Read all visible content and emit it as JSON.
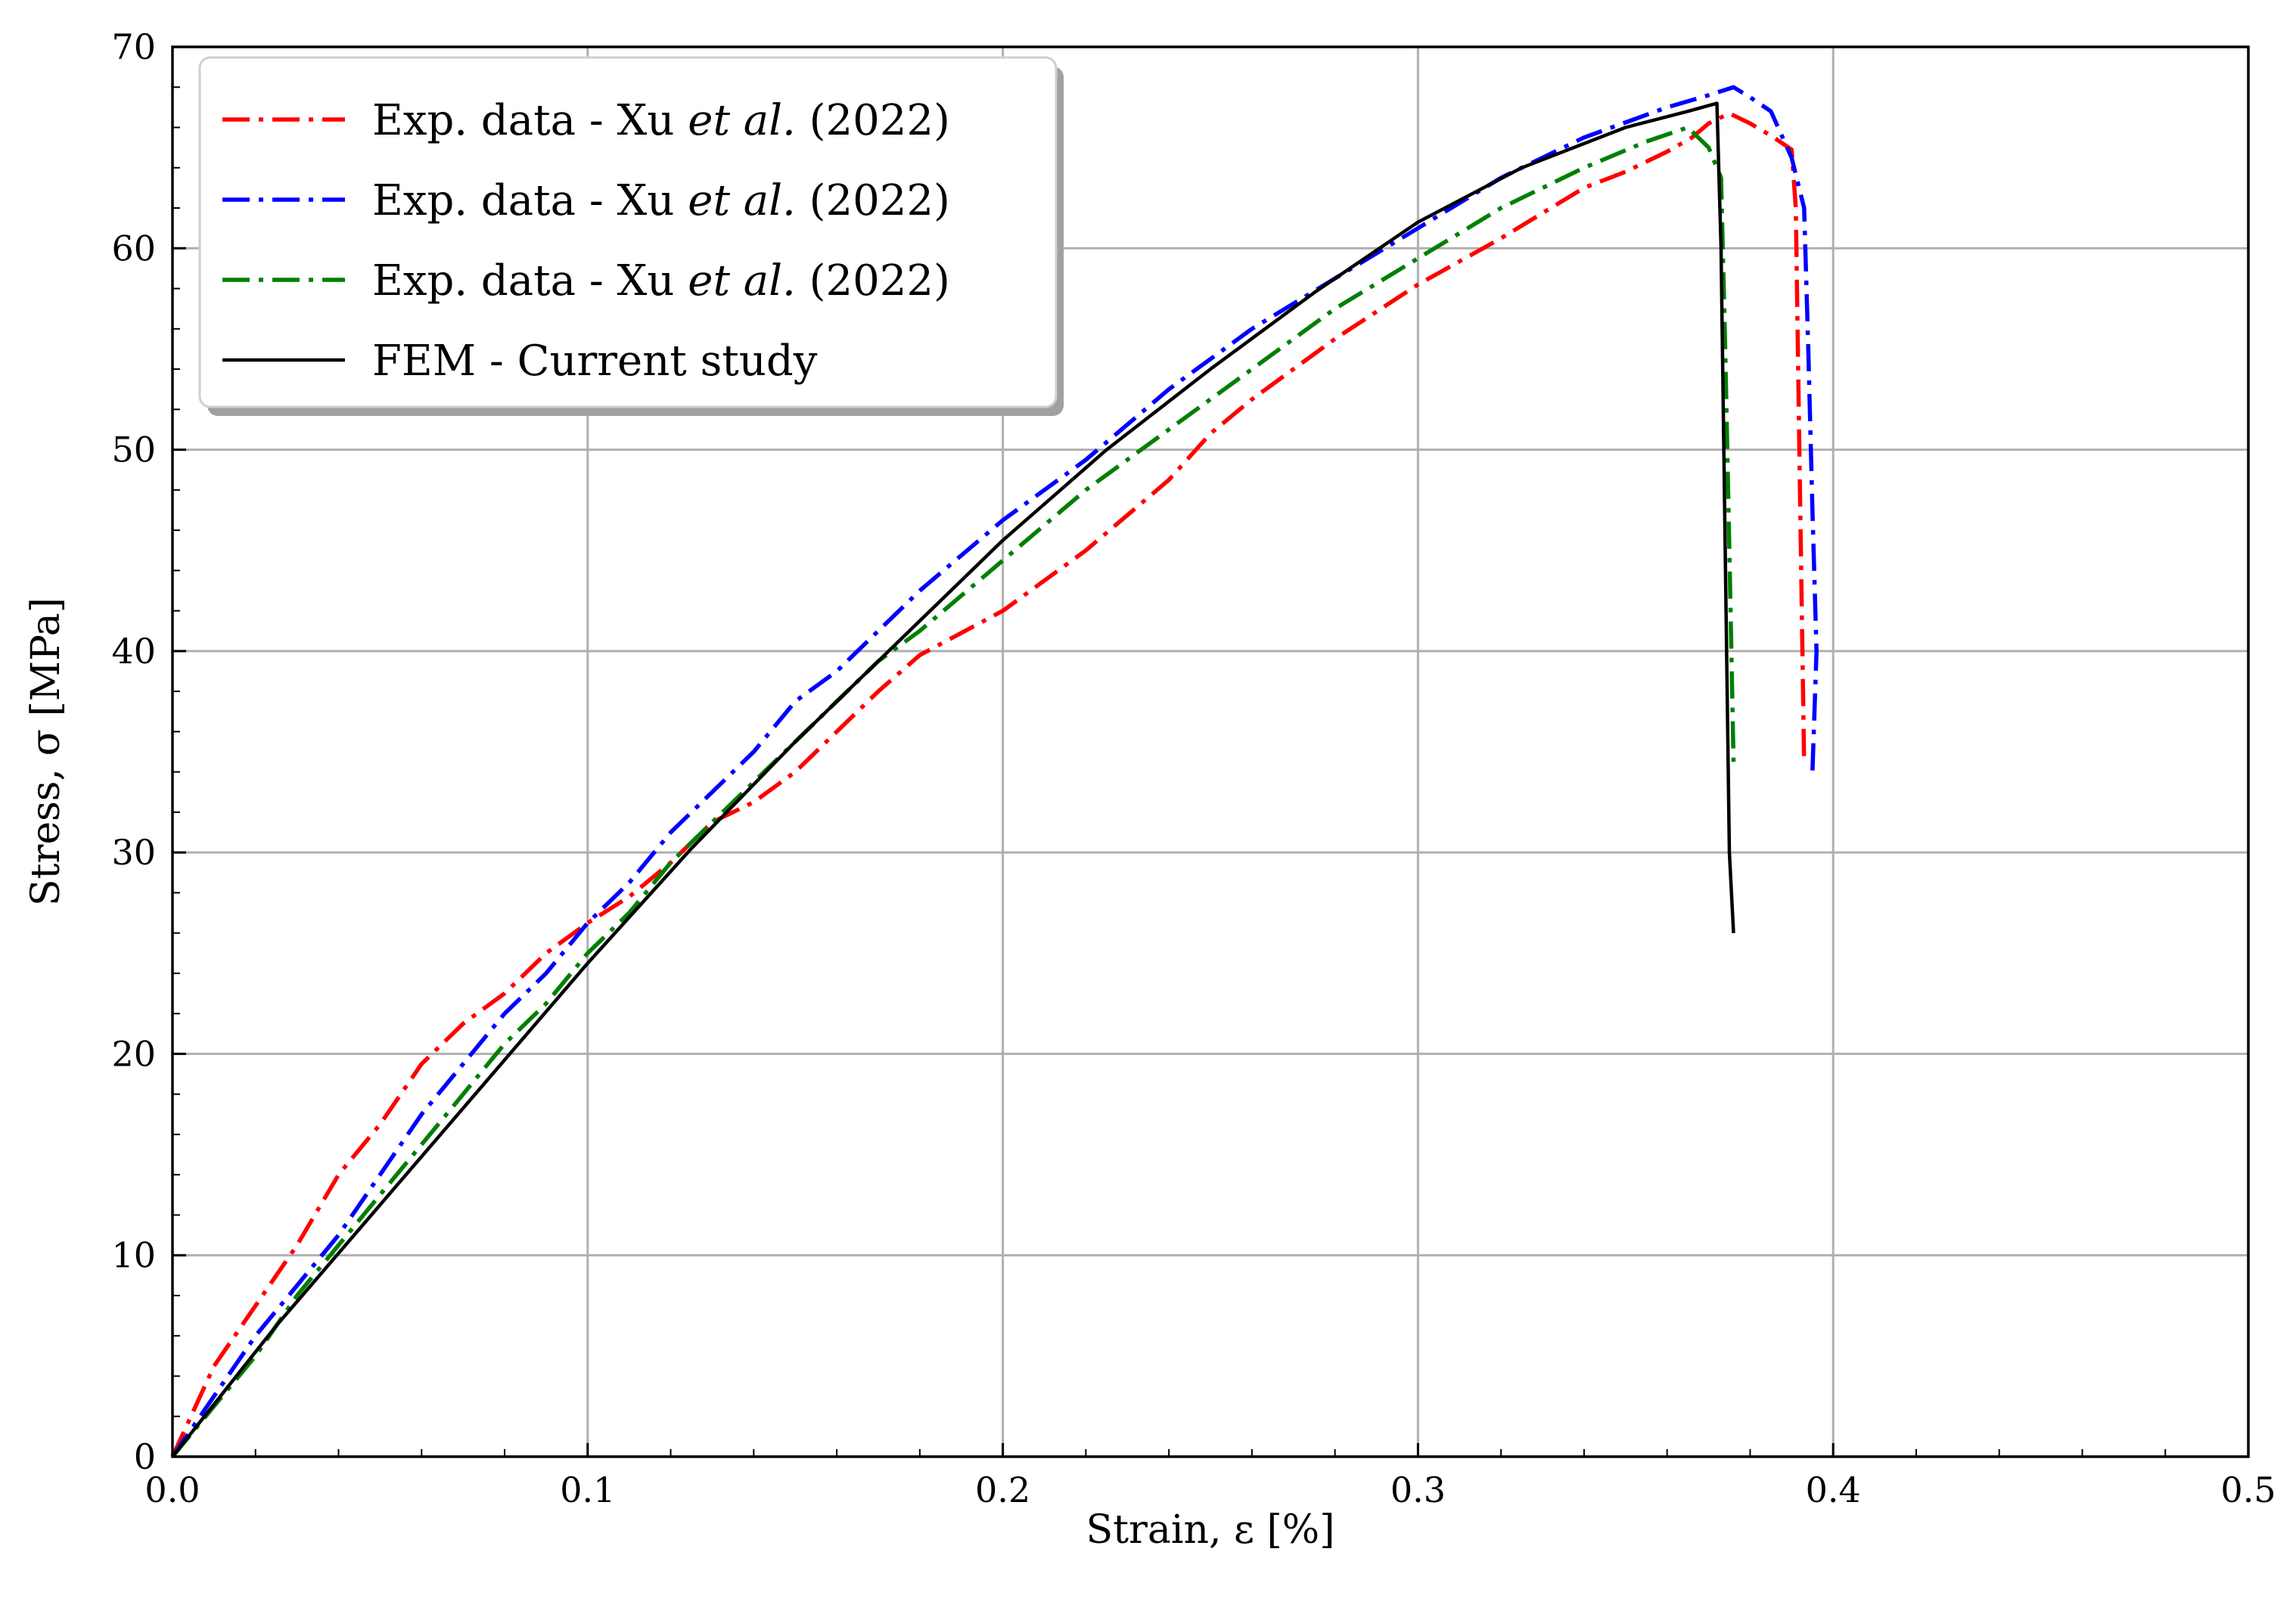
{
  "chart_data": {
    "type": "line",
    "title": "",
    "xlabel": "Strain, ε [%]",
    "ylabel": "Stress, σ [MPa]",
    "xlim": [
      0,
      0.5
    ],
    "ylim": [
      0,
      70
    ],
    "xticks": [
      0.0,
      0.1,
      0.2,
      0.3,
      0.4,
      0.5
    ],
    "xtick_labels": [
      "0.0",
      "0.1",
      "0.2",
      "0.3",
      "0.4",
      "0.5"
    ],
    "yticks": [
      0,
      10,
      20,
      30,
      40,
      50,
      60,
      70
    ],
    "ytick_labels": [
      "0",
      "10",
      "20",
      "30",
      "40",
      "50",
      "60",
      "70"
    ],
    "grid": true,
    "legend_position": "top-left",
    "series": [
      {
        "name": "Exp. data - Xu et al. (2022)",
        "color": "#ff0000",
        "style": "dash-dot",
        "x": [
          0.0,
          0.01,
          0.02,
          0.03,
          0.04,
          0.05,
          0.06,
          0.07,
          0.08,
          0.09,
          0.1,
          0.11,
          0.12,
          0.13,
          0.14,
          0.15,
          0.16,
          0.17,
          0.18,
          0.2,
          0.22,
          0.24,
          0.25,
          0.26,
          0.28,
          0.3,
          0.32,
          0.34,
          0.35,
          0.36,
          0.366,
          0.37,
          0.375,
          0.38,
          0.385,
          0.39,
          0.391,
          0.392,
          0.393
        ],
        "y": [
          0.0,
          4.5,
          7.5,
          10.5,
          14.0,
          16.5,
          19.5,
          21.5,
          23.0,
          25.0,
          26.5,
          27.8,
          29.5,
          31.5,
          32.5,
          34.0,
          36.0,
          38.0,
          39.8,
          42.0,
          45.0,
          48.5,
          50.8,
          52.5,
          55.5,
          58.2,
          60.5,
          63.0,
          63.8,
          64.8,
          65.5,
          66.2,
          66.7,
          66.2,
          65.6,
          64.9,
          62.0,
          48.0,
          34.5
        ]
      },
      {
        "name": "Exp. data - Xu et al. (2022)",
        "color": "#0000ff",
        "style": "dash-dot",
        "x": [
          0.0,
          0.01,
          0.02,
          0.03,
          0.04,
          0.05,
          0.06,
          0.07,
          0.08,
          0.09,
          0.1,
          0.11,
          0.12,
          0.13,
          0.14,
          0.15,
          0.16,
          0.17,
          0.18,
          0.2,
          0.22,
          0.24,
          0.26,
          0.28,
          0.3,
          0.32,
          0.34,
          0.36,
          0.37,
          0.376,
          0.38,
          0.385,
          0.39,
          0.393,
          0.394,
          0.395,
          0.396,
          0.395
        ],
        "y": [
          0.0,
          3.0,
          6.0,
          8.5,
          11.0,
          14.0,
          17.0,
          19.5,
          22.0,
          24.0,
          26.5,
          28.5,
          31.0,
          33.0,
          35.0,
          37.5,
          39.0,
          41.0,
          43.0,
          46.5,
          49.5,
          53.0,
          56.0,
          58.5,
          61.0,
          63.5,
          65.5,
          67.0,
          67.6,
          68.0,
          67.5,
          66.8,
          64.5,
          62.0,
          55.0,
          47.0,
          40.0,
          34.0
        ]
      },
      {
        "name": "Exp. data - Xu et al. (2022)",
        "color": "#008000",
        "style": "dash-dot",
        "x": [
          0.0,
          0.01,
          0.02,
          0.03,
          0.04,
          0.05,
          0.06,
          0.07,
          0.08,
          0.09,
          0.1,
          0.11,
          0.12,
          0.13,
          0.14,
          0.15,
          0.16,
          0.17,
          0.18,
          0.2,
          0.22,
          0.24,
          0.26,
          0.28,
          0.3,
          0.32,
          0.34,
          0.355,
          0.365,
          0.37,
          0.373,
          0.374,
          0.375,
          0.376
        ],
        "y": [
          0.0,
          2.5,
          5.0,
          8.0,
          10.5,
          13.0,
          15.5,
          18.0,
          20.5,
          22.5,
          25.0,
          27.0,
          29.5,
          31.5,
          33.5,
          35.5,
          37.5,
          39.5,
          41.0,
          44.5,
          48.0,
          51.0,
          54.0,
          57.0,
          59.5,
          62.0,
          64.0,
          65.3,
          66.0,
          65.0,
          63.5,
          55.0,
          45.0,
          34.5
        ]
      },
      {
        "name": "FEM - Current study",
        "color": "#000000",
        "style": "solid",
        "x": [
          0.0,
          0.025,
          0.05,
          0.075,
          0.1,
          0.125,
          0.15,
          0.175,
          0.2,
          0.225,
          0.25,
          0.275,
          0.3,
          0.325,
          0.35,
          0.365,
          0.372,
          0.373,
          0.374,
          0.375,
          0.376
        ],
        "y": [
          0.0,
          6.5,
          12.5,
          18.5,
          24.5,
          30.2,
          35.5,
          40.5,
          45.5,
          50.0,
          54.0,
          57.8,
          61.3,
          64.0,
          66.0,
          66.8,
          67.2,
          60.0,
          45.0,
          30.0,
          26.0
        ]
      }
    ]
  }
}
